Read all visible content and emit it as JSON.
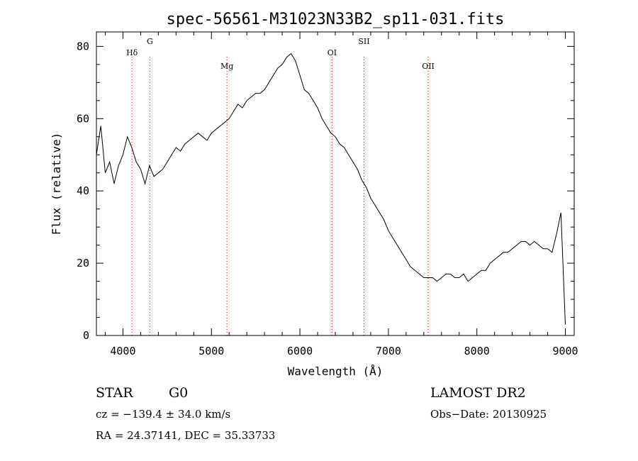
{
  "chart_data": {
    "type": "line",
    "title": "spec-56561-M31023N33B2_sp11-031.fits",
    "xlabel": "Wavelength (Å)",
    "ylabel": "Flux (relative)",
    "xlim": [
      3700,
      9100
    ],
    "ylim": [
      0,
      84
    ],
    "x_ticks": [
      4000,
      5000,
      6000,
      7000,
      8000,
      9000
    ],
    "y_ticks": [
      0,
      20,
      40,
      60,
      80
    ],
    "grid": false,
    "spectral_lines": [
      {
        "name": "Hδ",
        "wavelength": 4102
      },
      {
        "name": "G",
        "wavelength": 4304
      },
      {
        "name": "Mg",
        "wavelength": 5175
      },
      {
        "name": "OI",
        "wavelength": 6363
      },
      {
        "name": "SII",
        "wavelength": 6724
      },
      {
        "name": "OII",
        "wavelength": 7450
      }
    ],
    "series": [
      {
        "x": [
          3700,
          3750,
          3800,
          3850,
          3900,
          3950,
          4000,
          4050,
          4100,
          4150,
          4200,
          4250,
          4300,
          4350,
          4400,
          4450,
          4500,
          4550,
          4600,
          4650,
          4700,
          4750,
          4800,
          4850,
          4900,
          4950,
          5000,
          5050,
          5100,
          5150,
          5200,
          5250,
          5300,
          5350,
          5400,
          5450,
          5500,
          5550,
          5600,
          5650,
          5700,
          5750,
          5800,
          5850,
          5900,
          5950,
          6000,
          6050,
          6100,
          6150,
          6200,
          6250,
          6300,
          6350,
          6400,
          6450,
          6500,
          6550,
          6600,
          6650,
          6700,
          6750,
          6800,
          6850,
          6900,
          6950,
          7000,
          7050,
          7100,
          7150,
          7200,
          7250,
          7300,
          7350,
          7400,
          7450,
          7500,
          7550,
          7600,
          7650,
          7700,
          7750,
          7800,
          7850,
          7900,
          7950,
          8000,
          8050,
          8100,
          8150,
          8200,
          8250,
          8300,
          8350,
          8400,
          8450,
          8500,
          8550,
          8600,
          8650,
          8700,
          8750,
          8800,
          8850,
          8900,
          8950,
          9000
        ],
        "y": [
          50,
          58,
          45,
          48,
          42,
          47,
          50,
          55,
          52,
          48,
          46,
          42,
          47,
          44,
          45,
          46,
          48,
          50,
          52,
          51,
          53,
          54,
          55,
          56,
          55,
          54,
          56,
          57,
          58,
          59,
          60,
          62,
          64,
          63,
          65,
          66,
          67,
          67,
          68,
          70,
          72,
          74,
          75,
          77,
          78,
          76,
          72,
          68,
          67,
          65,
          63,
          60,
          58,
          56,
          55,
          53,
          52,
          50,
          48,
          46,
          43,
          41,
          38,
          36,
          34,
          32,
          29,
          27,
          25,
          23,
          21,
          19,
          18,
          17,
          16,
          16,
          16,
          15,
          16,
          17,
          17,
          16,
          16,
          17,
          15,
          16,
          17,
          18,
          18,
          20,
          21,
          22,
          23,
          23,
          24,
          25,
          26,
          26,
          25,
          26,
          25,
          24,
          24,
          23,
          28,
          34,
          3
        ]
      }
    ]
  },
  "footer": {
    "object_class": "STAR",
    "subclass": "G0",
    "cz": "cz = −139.4 ± 34.0 km/s",
    "coords": "RA =  24.37141, DEC =  35.33733",
    "survey": "LAMOST DR2",
    "obs_date": "Obs−Date: 20130925"
  }
}
